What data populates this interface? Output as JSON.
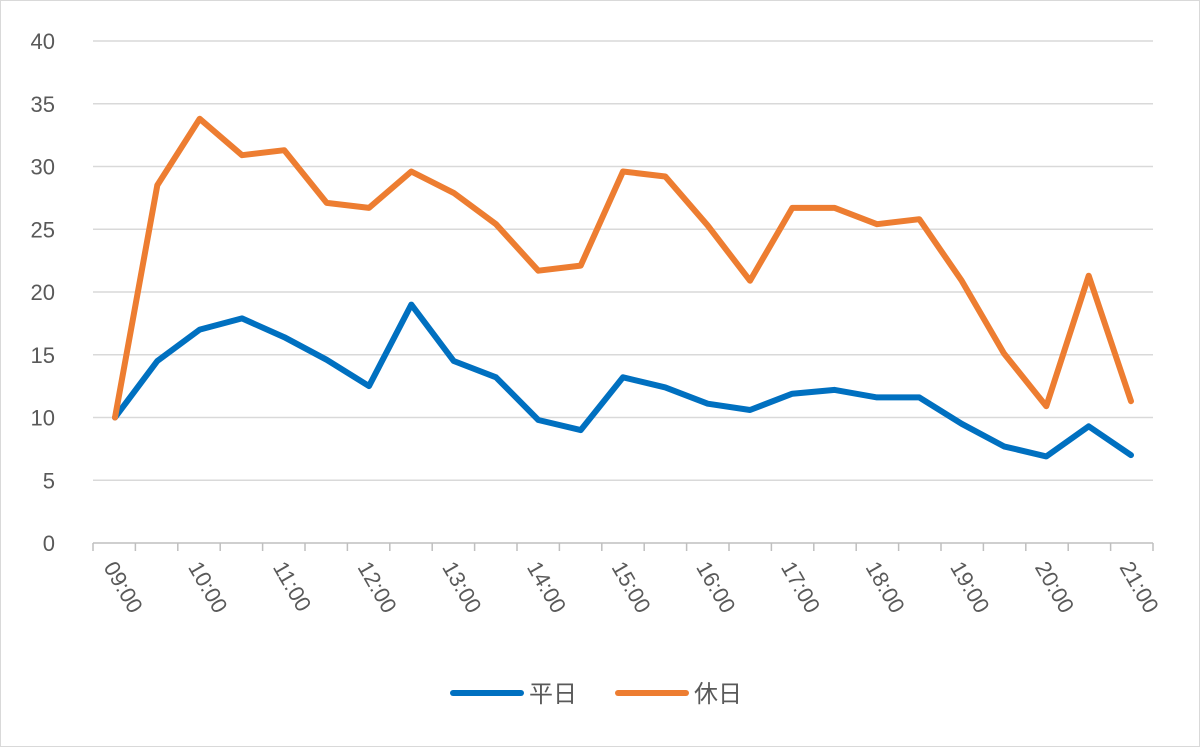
{
  "chart_data": {
    "type": "line",
    "title": "",
    "xlabel": "",
    "ylabel": "",
    "ylim": [
      0,
      40
    ],
    "yticks": [
      0,
      5,
      10,
      15,
      20,
      25,
      30,
      35,
      40
    ],
    "grid": "horizontal",
    "legend": "bottom",
    "x_tick_labels": [
      "09:00",
      "10:00",
      "11:00",
      "12:00",
      "13:00",
      "14:00",
      "15:00",
      "16:00",
      "17:00",
      "18:00",
      "19:00",
      "20:00",
      "21:00"
    ],
    "x": [
      "09:00",
      "09:30",
      "10:00",
      "10:30",
      "11:00",
      "11:30",
      "12:00",
      "12:30",
      "13:00",
      "13:30",
      "14:00",
      "14:30",
      "15:00",
      "15:30",
      "16:00",
      "16:30",
      "17:00",
      "17:30",
      "18:00",
      "18:30",
      "19:00",
      "19:30",
      "20:00",
      "20:30",
      "21:00"
    ],
    "series": [
      {
        "name": "平日",
        "color": "#0070c0",
        "values": [
          10.0,
          14.5,
          17.0,
          17.9,
          16.4,
          14.6,
          12.5,
          19.0,
          14.5,
          13.2,
          9.8,
          9.0,
          13.2,
          12.4,
          11.1,
          10.6,
          11.9,
          12.2,
          11.6,
          11.6,
          9.5,
          7.7,
          6.9,
          9.3,
          7.0
        ]
      },
      {
        "name": "休日",
        "color": "#ed7d31",
        "values": [
          10.0,
          28.5,
          33.8,
          30.9,
          31.3,
          27.1,
          26.7,
          29.6,
          27.9,
          25.4,
          21.7,
          22.1,
          29.6,
          29.2,
          25.3,
          20.9,
          26.7,
          26.7,
          25.4,
          25.8,
          20.9,
          15.1,
          10.9,
          21.3,
          11.3
        ]
      }
    ]
  }
}
